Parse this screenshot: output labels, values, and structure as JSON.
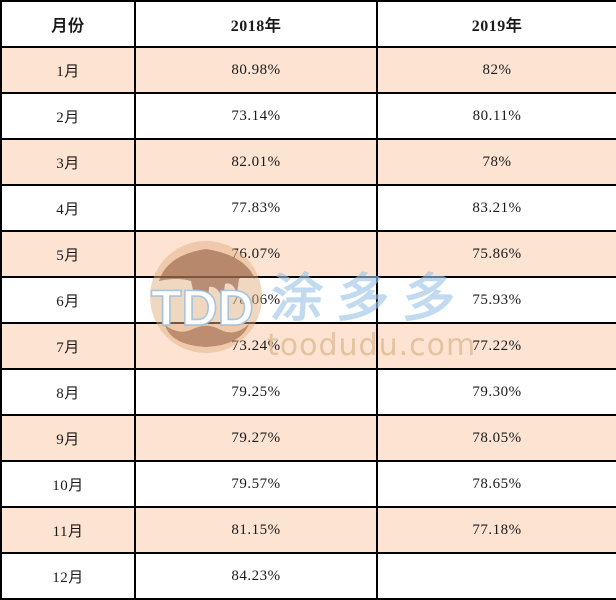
{
  "chart_data": {
    "type": "table",
    "columns": [
      "月份",
      "2018年",
      "2019年"
    ],
    "rows": [
      [
        "1月",
        "80.98%",
        "82%"
      ],
      [
        "2月",
        "73.14%",
        "80.11%"
      ],
      [
        "3月",
        "82.01%",
        "78%"
      ],
      [
        "4月",
        "77.83%",
        "83.21%"
      ],
      [
        "5月",
        "76.07%",
        "75.86%"
      ],
      [
        "6月",
        "78.06%",
        "75.93%"
      ],
      [
        "7月",
        "73.24%",
        "77.22%"
      ],
      [
        "8月",
        "79.25%",
        "79.30%"
      ],
      [
        "9月",
        "79.27%",
        "78.05%"
      ],
      [
        "10月",
        "79.57%",
        "78.65%"
      ],
      [
        "11月",
        "81.15%",
        "77.18%"
      ],
      [
        "12月",
        "84.23%",
        ""
      ]
    ]
  },
  "watermark": {
    "logo_text": "TDD",
    "brand_text": "涂多多",
    "domain_text": "toodudu.com"
  },
  "colors": {
    "stripe": "#fce3d2",
    "border": "#000000",
    "watermark_blue": "#9cc4e6",
    "watermark_tan": "#e0bc98"
  }
}
